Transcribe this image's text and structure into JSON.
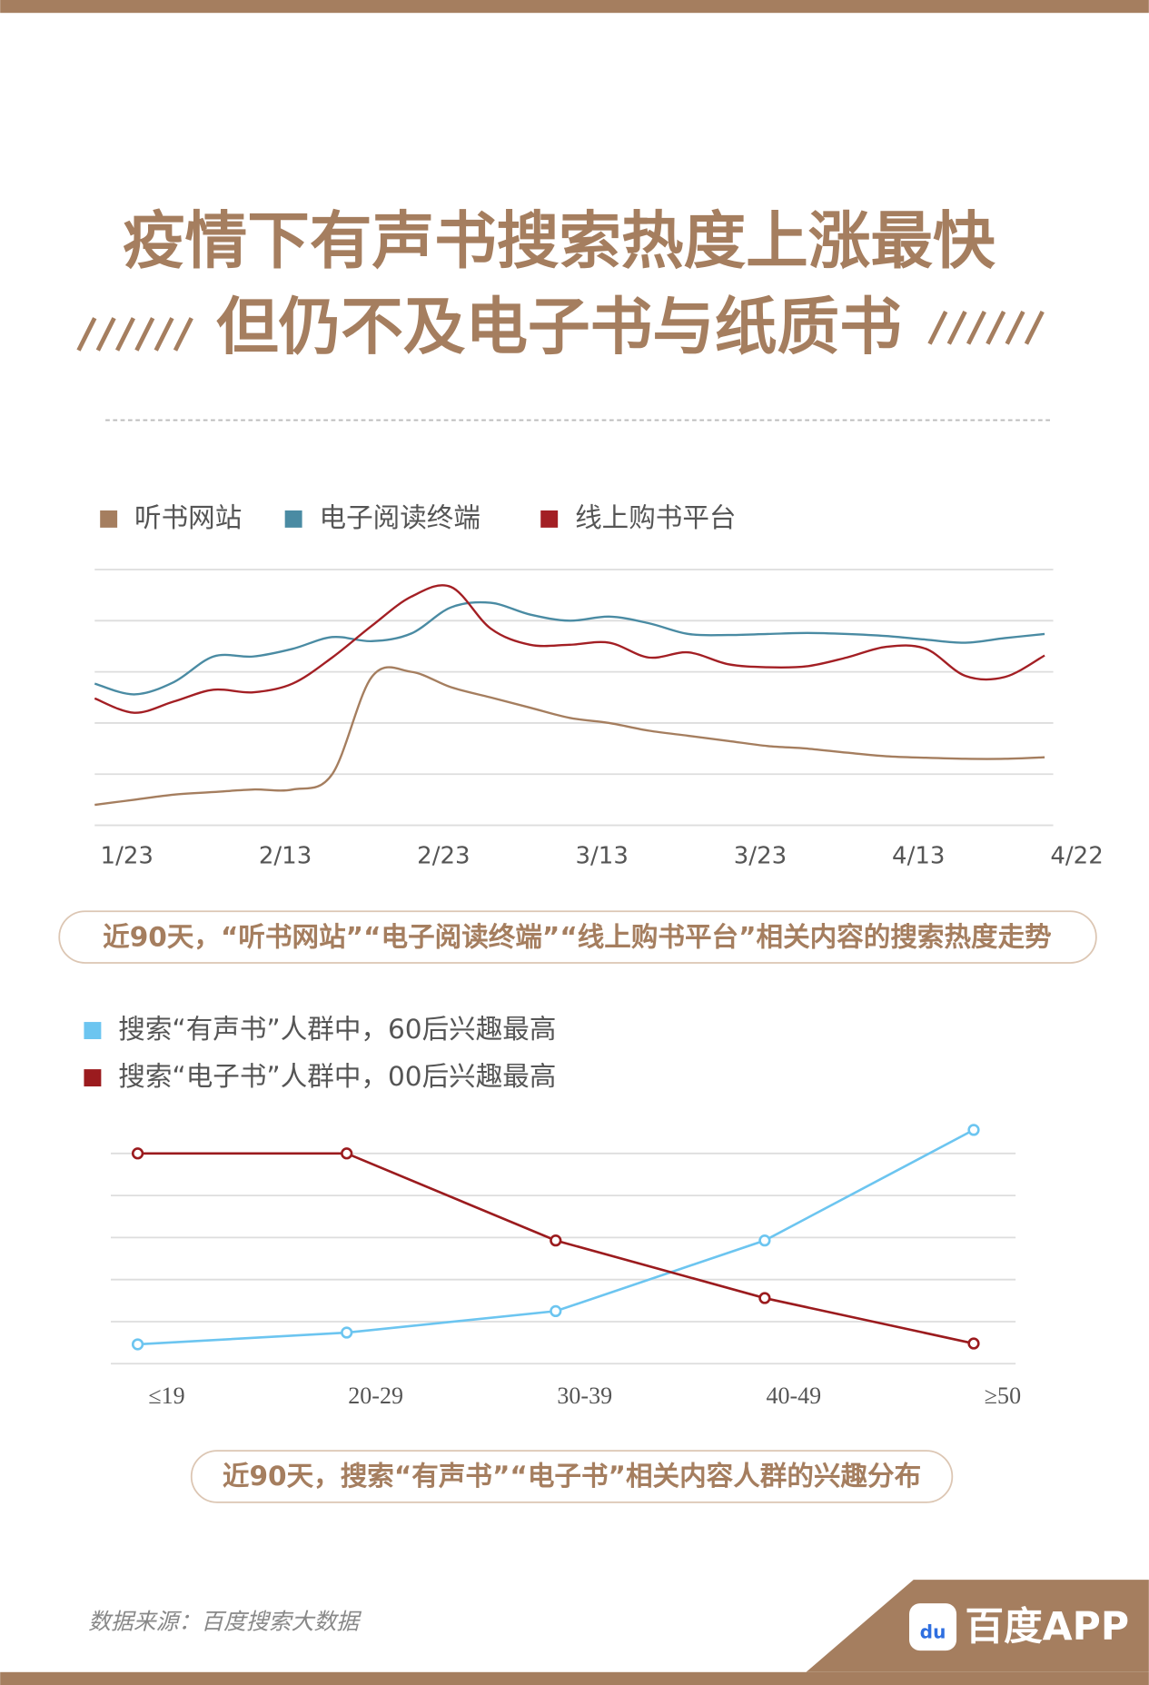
{
  "title": [
    "疫情下有声书搜索热度上涨最快",
    "但仍不及电子书与纸质书"
  ],
  "chart_data": [
    {
      "type": "line",
      "categories": [
        "1/23",
        null,
        null,
        null,
        "2/13",
        null,
        null,
        null,
        "2/23",
        null,
        null,
        null,
        "3/13",
        null,
        null,
        null,
        "3/23",
        null,
        null,
        null,
        "4/13",
        null,
        null,
        null,
        "4/22"
      ],
      "series": [
        {
          "name": "听书网站",
          "color": "#a57e5f",
          "values": [
            0.4,
            0.5,
            0.6,
            0.65,
            0.7,
            0.7,
            1.0,
            2.9,
            3.0,
            2.7,
            2.5,
            2.3,
            2.1,
            2.0,
            1.85,
            1.75,
            1.65,
            1.55,
            1.5,
            1.42,
            1.35,
            1.32,
            1.3,
            1.3,
            1.33
          ]
        },
        {
          "name": "电子阅读终端",
          "color": "#4a8ba3",
          "values": [
            2.77,
            2.56,
            2.8,
            3.3,
            3.3,
            3.45,
            3.68,
            3.6,
            3.75,
            4.26,
            4.35,
            4.12,
            4.0,
            4.08,
            3.95,
            3.74,
            3.72,
            3.74,
            3.76,
            3.74,
            3.7,
            3.63,
            3.57,
            3.66,
            3.74
          ]
        },
        {
          "name": "线上购书平台",
          "color": "#a31f24",
          "values": [
            2.48,
            2.2,
            2.42,
            2.65,
            2.6,
            2.77,
            3.28,
            3.9,
            4.47,
            4.66,
            3.85,
            3.53,
            3.53,
            3.57,
            3.28,
            3.38,
            3.15,
            3.09,
            3.11,
            3.28,
            3.49,
            3.45,
            2.92,
            2.9,
            3.32
          ]
        }
      ],
      "ylim": [
        0,
        5
      ],
      "yticks": [
        0,
        1,
        2,
        3,
        4,
        5
      ],
      "grid": true,
      "smooth": true,
      "caption": "近90天，“听书网站”“电子阅读终端”“线上购书平台”相关内容的搜索热度走势"
    },
    {
      "type": "line",
      "categories": [
        "≤19",
        "20-29",
        "30-39",
        "40-49",
        "≥50"
      ],
      "series": [
        {
          "name": "搜索“有声书”人群中，60后兴趣最高",
          "color": "#6cc5f0",
          "values": [
            0.46,
            0.74,
            1.25,
            2.93,
            5.56
          ]
        },
        {
          "name": "搜索“电子书”人群中，00后兴趣最高",
          "color": "#9b1b1e",
          "values": [
            5.0,
            5.0,
            2.93,
            1.56,
            0.48
          ]
        }
      ],
      "ylim": [
        0,
        5.75
      ],
      "yticks": [
        0,
        1,
        2,
        3,
        4,
        5
      ],
      "grid": true,
      "markers": true,
      "caption": "近90天，搜索“有声书”“电子书”相关内容人群的兴趣分布"
    }
  ],
  "source": "数据来源：百度搜索大数据",
  "brand": {
    "icon_text": "du",
    "name": "百度APP"
  }
}
